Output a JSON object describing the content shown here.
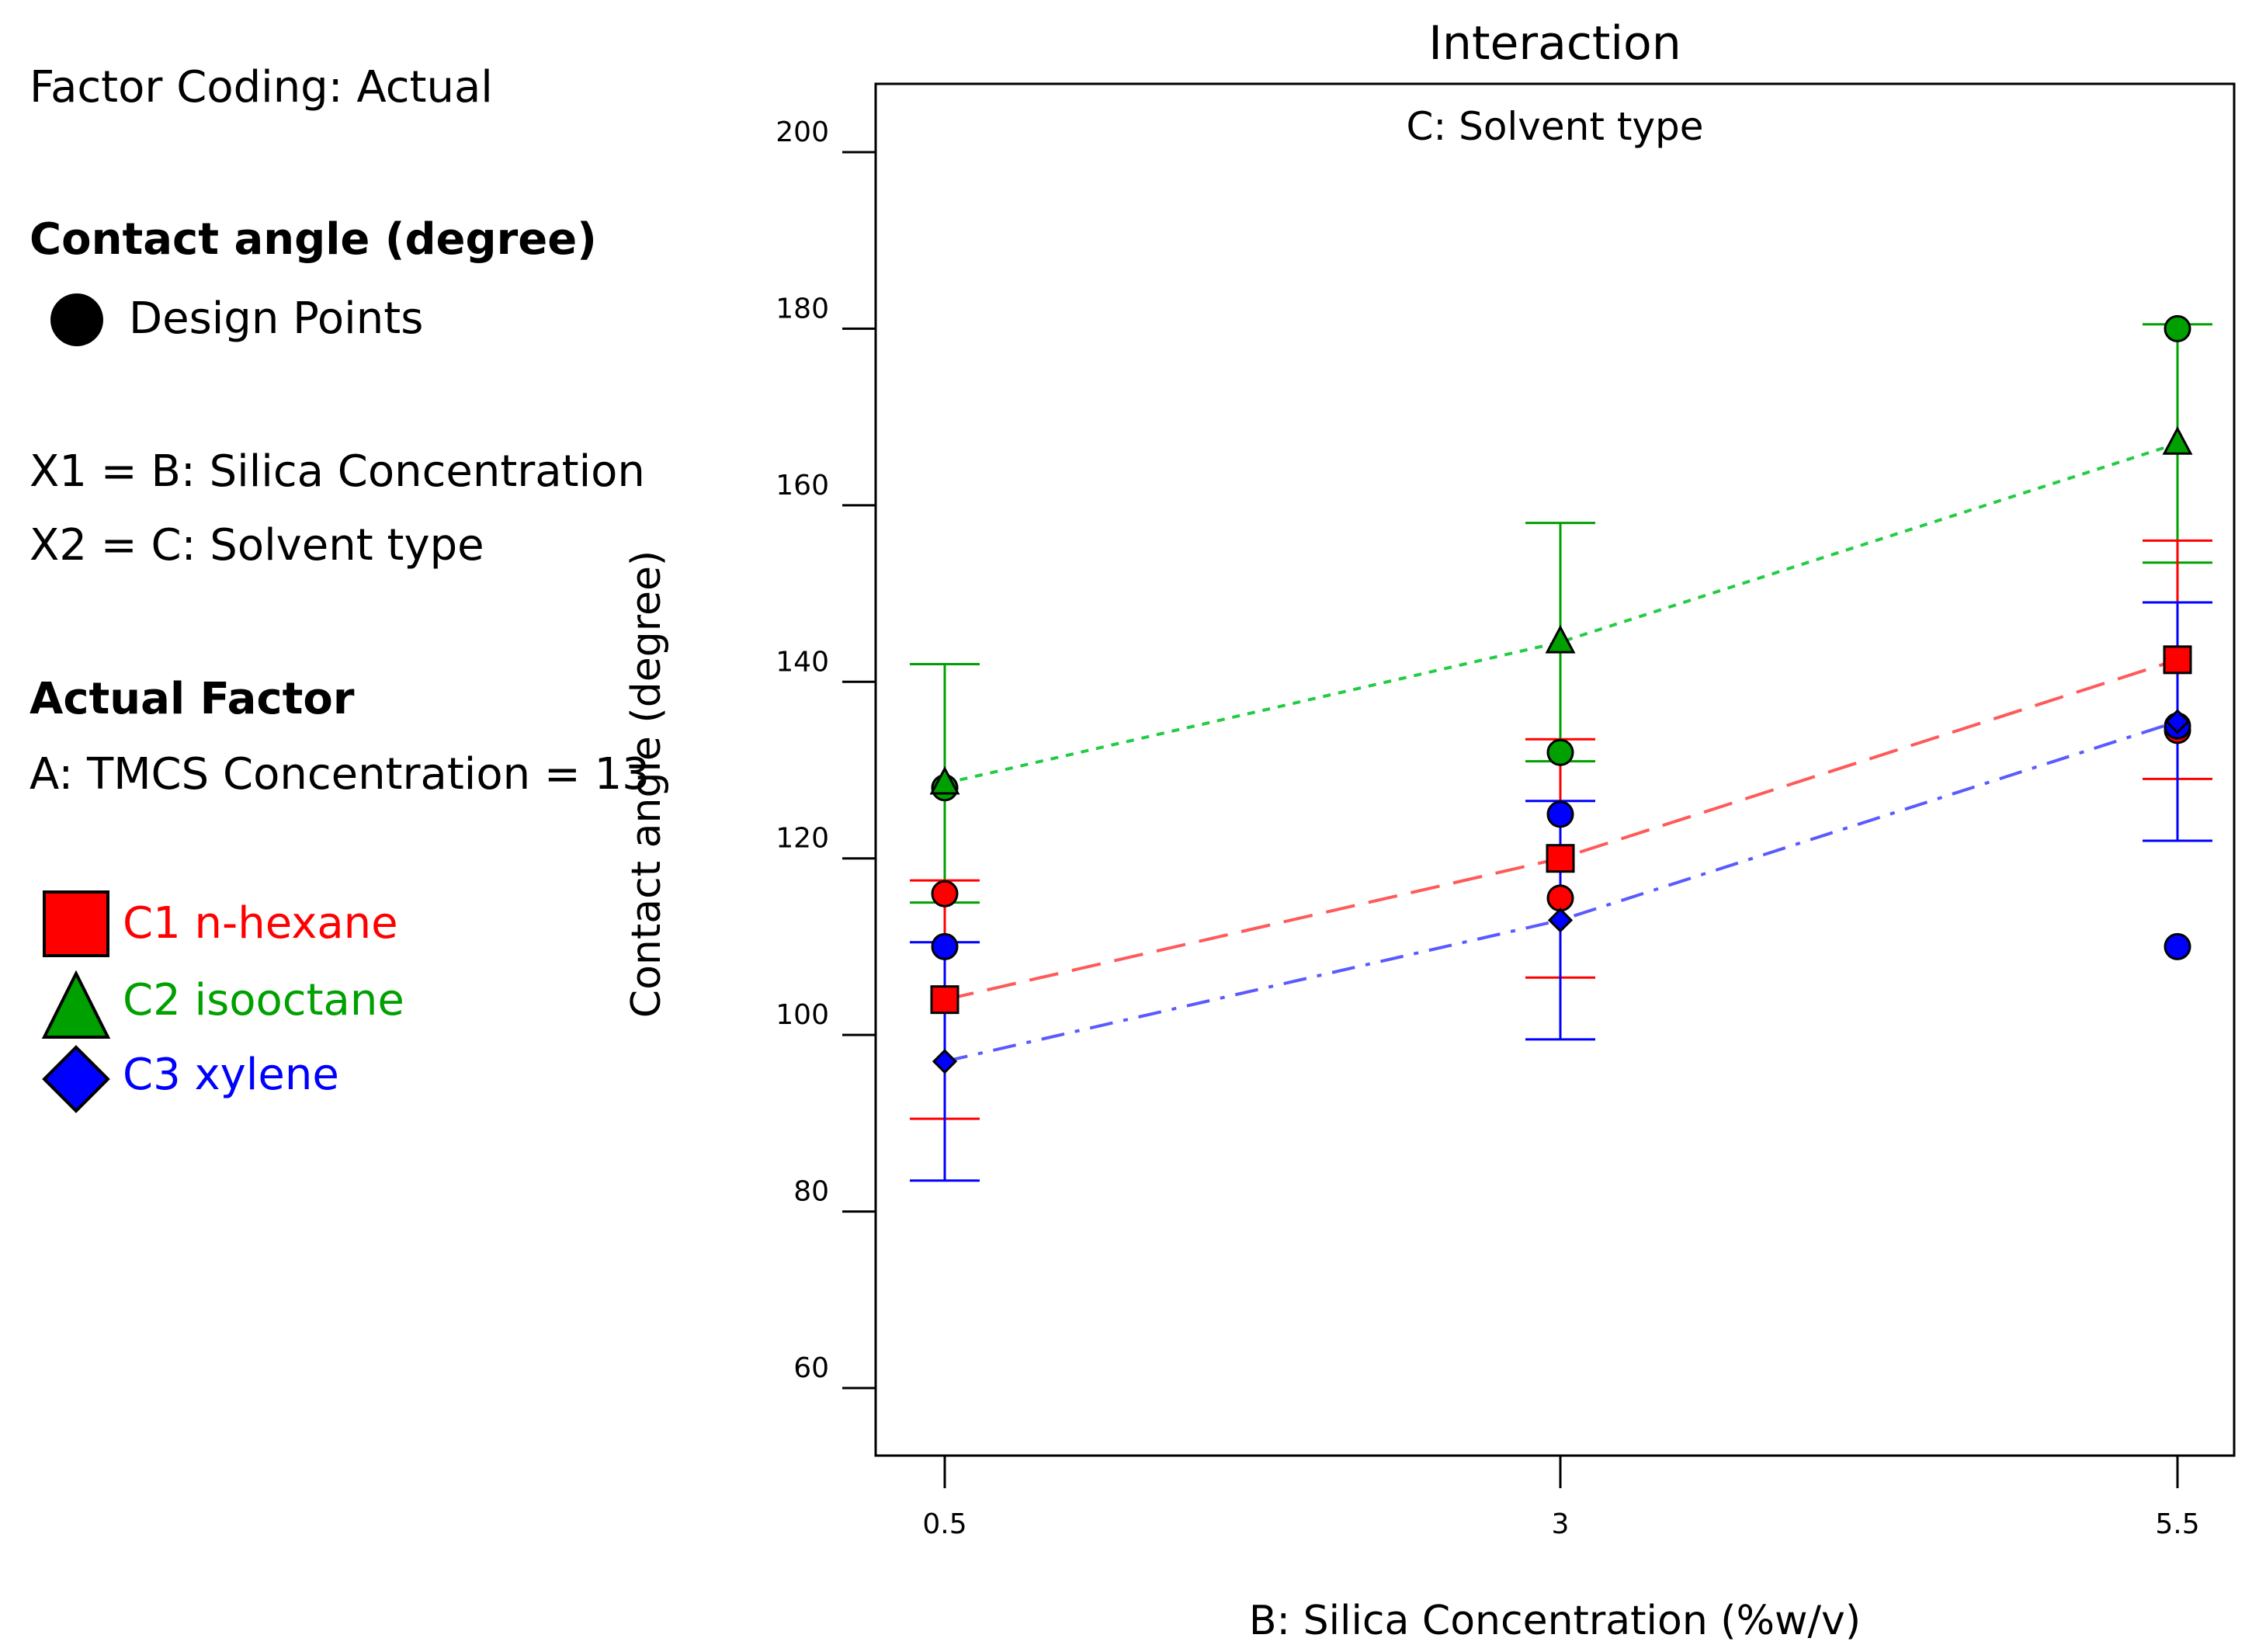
{
  "side_panel": {
    "factor_coding": "Factor Coding: Actual",
    "response_title": "Contact angle (degree)",
    "design_points_label": "Design Points",
    "x1_label": "X1 = B: Silica Concentration",
    "x2_label": "X2 = C: Solvent type",
    "actual_factor_title": "Actual Factor",
    "actual_factor_value": "A: TMCS Concentration = 13"
  },
  "chart_data": {
    "type": "line",
    "title": "Interaction",
    "subtitle": "C: Solvent type",
    "xlabel": "B: Silica Concentration (%w/v)",
    "ylabel": "Contact angle (degree)",
    "x_ticks": [
      "0.5",
      "3",
      "5.5"
    ],
    "y_ticks": [
      "60",
      "80",
      "100",
      "120",
      "140",
      "160",
      "180",
      "200"
    ],
    "xlim": [
      0.5,
      5.5
    ],
    "ylim": [
      52,
      207
    ],
    "grid": false,
    "legend_position": "left",
    "series": [
      {
        "name": "C1 n-hexane",
        "color": "#ff0000",
        "marker": "square",
        "line_style": "dashed",
        "x": [
          0.5,
          3,
          5.5
        ],
        "values": [
          104,
          120,
          142.5
        ],
        "ci_low": [
          90.5,
          106.5,
          129
        ],
        "ci_high": [
          117.5,
          133.5,
          156
        ],
        "design_points": [
          {
            "x": 0.5,
            "y": 116
          },
          {
            "x": 3,
            "y": 115.5
          },
          {
            "x": 5.5,
            "y": 134.5
          }
        ]
      },
      {
        "name": "C2 isooctane",
        "color": "#00a000",
        "marker": "triangle",
        "line_style": "dotted",
        "x": [
          0.5,
          3,
          5.5
        ],
        "values": [
          128.5,
          144.5,
          167
        ],
        "ci_low": [
          115,
          131,
          153.5
        ],
        "ci_high": [
          142,
          158,
          180.5
        ],
        "design_points": [
          {
            "x": 0.5,
            "y": 128
          },
          {
            "x": 3,
            "y": 132
          },
          {
            "x": 5.5,
            "y": 180
          }
        ]
      },
      {
        "name": "C3 xylene",
        "color": "#0000ff",
        "marker": "diamond",
        "line_style": "dashdot",
        "x": [
          0.5,
          3,
          5.5
        ],
        "values": [
          97,
          113,
          135.5
        ],
        "ci_low": [
          83.5,
          99.5,
          122
        ],
        "ci_high": [
          110.5,
          126.5,
          149
        ],
        "design_points": [
          {
            "x": 0.5,
            "y": 110
          },
          {
            "x": 3,
            "y": 125
          },
          {
            "x": 5.5,
            "y": 110
          },
          {
            "x": 5.5,
            "y": 135
          }
        ]
      }
    ]
  }
}
